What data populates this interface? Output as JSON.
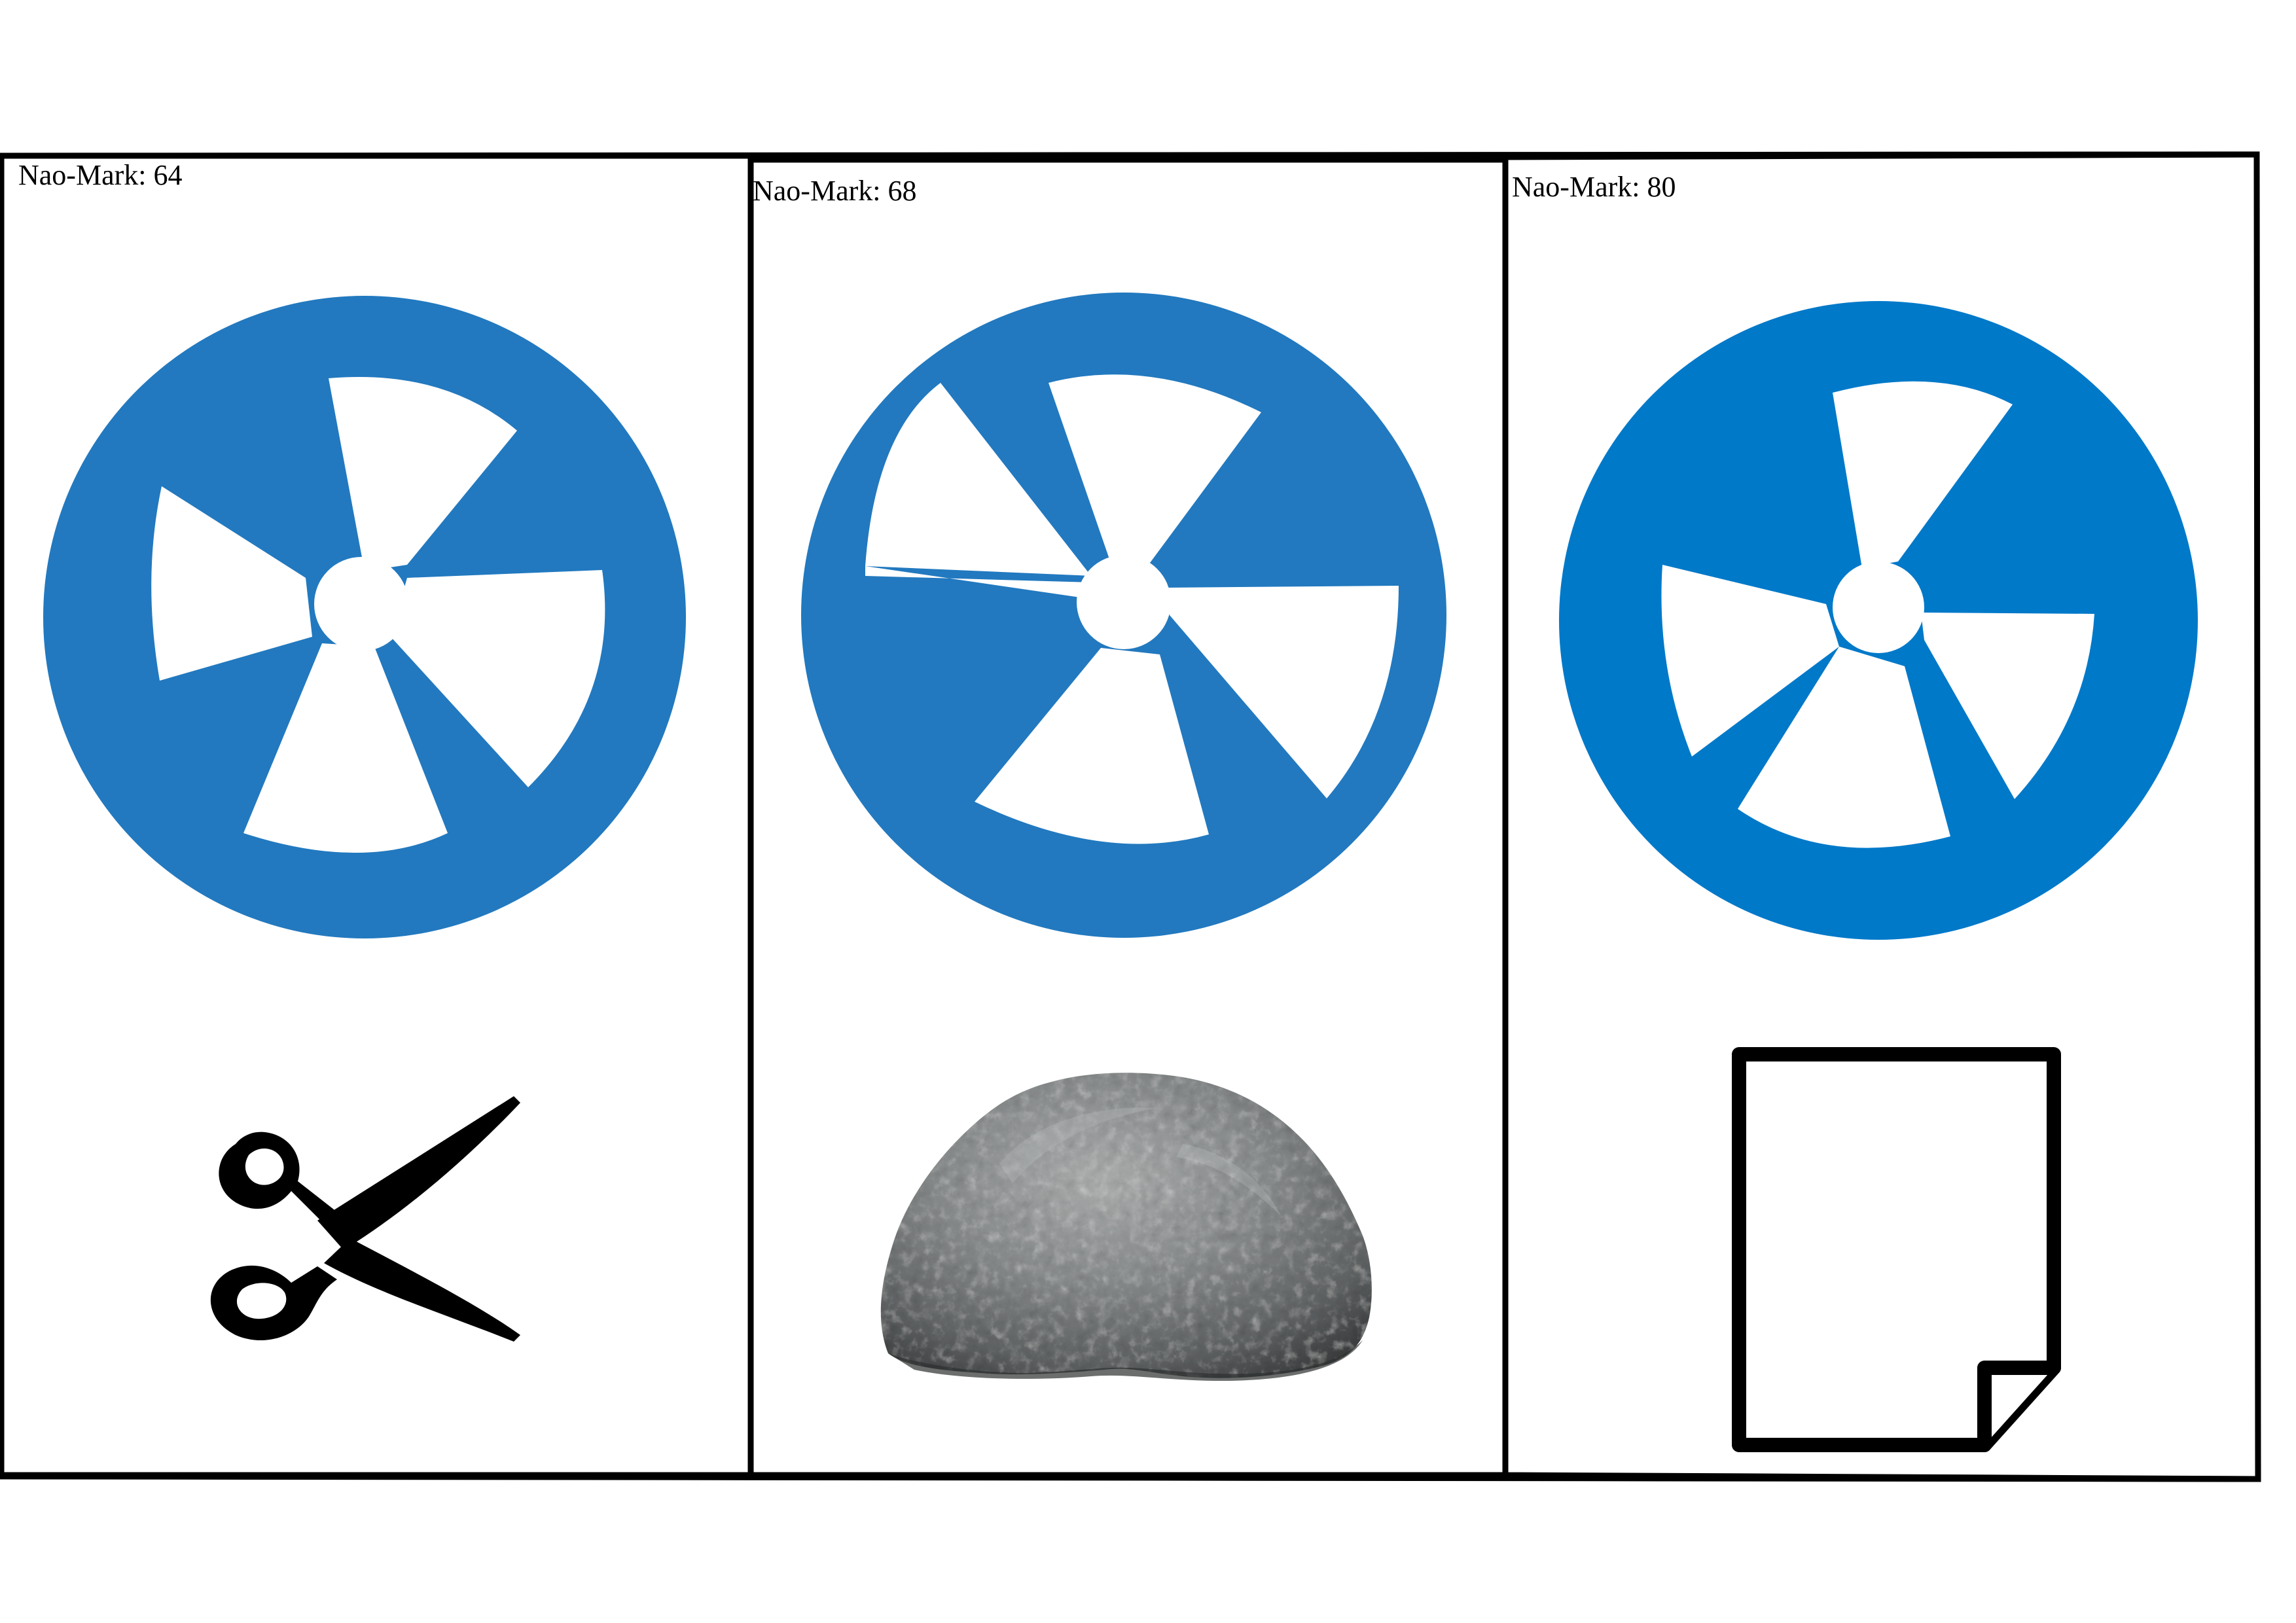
{
  "cards": [
    {
      "label": "Nao-Mark: 64",
      "marker_icon": "nao-mark-icon",
      "object_icon": "scissors-icon"
    },
    {
      "label": "Nao-Mark: 68",
      "marker_icon": "nao-mark-icon",
      "object_icon": "rock-icon"
    },
    {
      "label": "Nao-Mark: 80",
      "marker_icon": "nao-mark-icon",
      "object_icon": "paper-icon"
    }
  ],
  "colors": {
    "marker_blue_1": "#2279bf",
    "marker_blue_2": "#2279bf",
    "marker_blue_3": "#0079c9",
    "border": "#000000",
    "rock_base": "#77797a"
  }
}
